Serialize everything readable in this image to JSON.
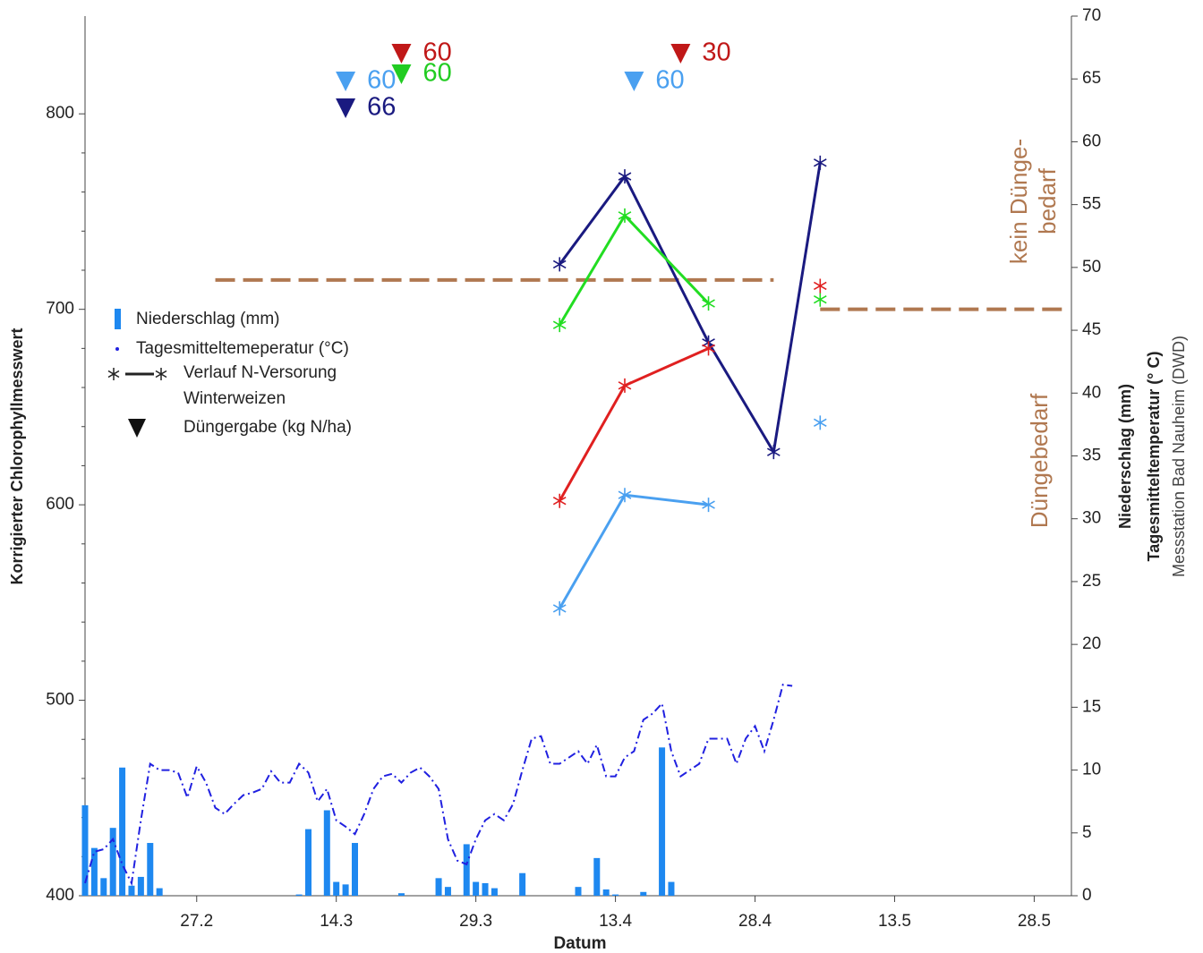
{
  "chart_data": {
    "type": "combo",
    "xlabel": "Datum",
    "ylabel": "Korrigierter Chlorophyllmesswert",
    "y2labels": [
      "Niederschlag (mm)",
      "Tagesmitteltemperatur (° C)",
      "Messstation Bad Nauheim (DWD)"
    ],
    "xlim": [
      46,
      152
    ],
    "xticks": [
      {
        "value": 58,
        "label": "27.2"
      },
      {
        "value": 73,
        "label": "14.3"
      },
      {
        "value": 88,
        "label": "29.3"
      },
      {
        "value": 103,
        "label": "13.4"
      },
      {
        "value": 118,
        "label": "28.4"
      },
      {
        "value": 133,
        "label": "13.5"
      },
      {
        "value": 148,
        "label": "28.5"
      }
    ],
    "ylim": [
      400,
      850
    ],
    "yticks": [
      400,
      500,
      600,
      700,
      800
    ],
    "y2lim": [
      0,
      70
    ],
    "y2ticks": [
      0,
      5,
      10,
      15,
      20,
      25,
      30,
      35,
      40,
      45,
      50,
      55,
      60,
      65,
      70
    ],
    "x": [
      46,
      47,
      48,
      49,
      50,
      51,
      52,
      53,
      54,
      55,
      56,
      57,
      58,
      59,
      60,
      61,
      62,
      63,
      64,
      65,
      66,
      67,
      68,
      69,
      70,
      71,
      72,
      73,
      74,
      75,
      76,
      77,
      78,
      79,
      80,
      81,
      82,
      83,
      84,
      85,
      86,
      87,
      88,
      89,
      90,
      91,
      92,
      93,
      94,
      95,
      96,
      97,
      98,
      99,
      100,
      101,
      102,
      103,
      104,
      105,
      106,
      107,
      108,
      109,
      110,
      111,
      112,
      113,
      114,
      115,
      116,
      117,
      118,
      119,
      120,
      121,
      122
    ],
    "series": [
      {
        "name": "Niederschlag (mm)",
        "type": "bar",
        "axis": "y2",
        "color": "#1e88f0",
        "values": [
          7.2,
          3.8,
          1.4,
          5.4,
          10.2,
          0.8,
          1.5,
          4.2,
          0.6,
          0,
          0,
          0,
          0,
          0,
          0,
          0,
          0,
          0,
          0,
          0,
          0,
          0,
          0,
          0.1,
          5.3,
          0,
          6.8,
          1.1,
          0.9,
          4.2,
          0,
          0,
          0,
          0,
          0.2,
          0,
          0,
          0,
          1.4,
          0.7,
          0,
          4.1,
          1.1,
          1.0,
          0.6,
          0,
          0,
          1.8,
          0,
          0,
          0,
          0,
          0,
          0.7,
          0,
          3.0,
          0.5,
          0.1,
          0,
          0,
          0.3,
          0,
          11.8,
          1.1,
          0,
          0,
          0,
          0,
          0,
          0,
          0,
          0,
          0,
          0,
          0,
          0,
          0
        ]
      },
      {
        "name": "Tagesmitteltemeperatur (°C)",
        "type": "line",
        "axis": "y2",
        "color": "#2020e0",
        "values": [
          1,
          3.5,
          3.7,
          4.5,
          2.5,
          1,
          6,
          10.5,
          10,
          10,
          9.8,
          7.8,
          10.3,
          9,
          7,
          6.5,
          7.3,
          8,
          8.2,
          8.5,
          9.9,
          9,
          9,
          10.5,
          9.8,
          7.5,
          8.5,
          6,
          5.5,
          4.9,
          6.5,
          8.5,
          9.5,
          9.7,
          9,
          9.8,
          10.2,
          9.5,
          8.5,
          4.5,
          2.8,
          2.5,
          4.5,
          6,
          6.5,
          6,
          7.3,
          10,
          12.5,
          12.7,
          10.5,
          10.5,
          11,
          11.5,
          10.5,
          12,
          9.5,
          9.5,
          11,
          11.5,
          14,
          14.5,
          15.3,
          11.5,
          9.5,
          10,
          10.5,
          12.5,
          12.5,
          12.5,
          10.5,
          12.5,
          13.5,
          11.5,
          14,
          16.8,
          16.7
        ]
      },
      {
        "type": "star-line",
        "color": "#1a1a80",
        "x": [
          97,
          104,
          113,
          120,
          125
        ],
        "values": [
          723,
          768,
          683,
          627,
          775
        ]
      },
      {
        "type": "star-line",
        "color": "#22dd22",
        "x": [
          97,
          104,
          113,
          120,
          125
        ],
        "values": [
          692,
          748,
          703,
          null,
          705
        ]
      },
      {
        "type": "star-line",
        "color": "#e02020",
        "x": [
          97,
          104,
          113,
          120,
          125
        ],
        "values": [
          602,
          661,
          680,
          null,
          712
        ]
      },
      {
        "type": "star-line",
        "color": "#4aa0f0",
        "x": [
          97,
          104,
          113,
          120,
          125
        ],
        "values": [
          547,
          605,
          600,
          null,
          642
        ]
      }
    ],
    "fertilizer": [
      {
        "x": 74,
        "amount": 60,
        "color": "#4aa0f0"
      },
      {
        "x": 74,
        "amount": 66,
        "color": "#1a1a80"
      },
      {
        "x": 80,
        "amount": 60,
        "color": "#c01818"
      },
      {
        "x": 80,
        "amount": 60,
        "color": "#22cc22"
      },
      {
        "x": 105,
        "amount": 60,
        "color": "#4aa0f0"
      },
      {
        "x": 110,
        "amount": 30,
        "color": "#c01818"
      }
    ],
    "thresholds": [
      {
        "value": 715,
        "x": [
          60,
          120
        ],
        "color": "#b07850"
      },
      {
        "value": 700,
        "x": [
          125,
          151
        ],
        "color": "#b07850"
      }
    ],
    "annotations": {
      "no_need": [
        "kein Dünge-",
        "bedarf"
      ],
      "need": "Düngebedarf"
    },
    "legend_extra": {
      "n_supply": [
        "Verlauf N-Versorung",
        "Winterweizen"
      ],
      "fertilizer": "Düngergabe (kg N/ha)"
    }
  }
}
